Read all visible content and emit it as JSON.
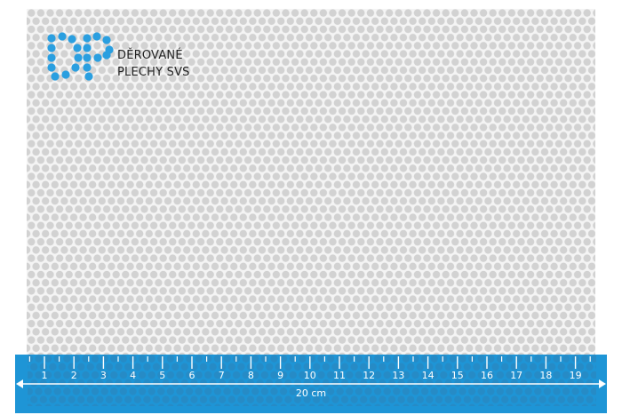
{
  "brand": {
    "line1": "DĚROVANÉ",
    "line2": "PLECHY SVS",
    "icon": "dp-dot-logo"
  },
  "ruler": {
    "labels": [
      "1",
      "2",
      "3",
      "4",
      "5",
      "6",
      "7",
      "8",
      "9",
      "10",
      "11",
      "12",
      "13",
      "14",
      "15",
      "16",
      "17",
      "18",
      "19"
    ],
    "length_label": "20 cm"
  },
  "colors": {
    "accent": "#1e95d6",
    "hole": "#cfcfcf",
    "logo_dot": "#2a9fe0"
  }
}
